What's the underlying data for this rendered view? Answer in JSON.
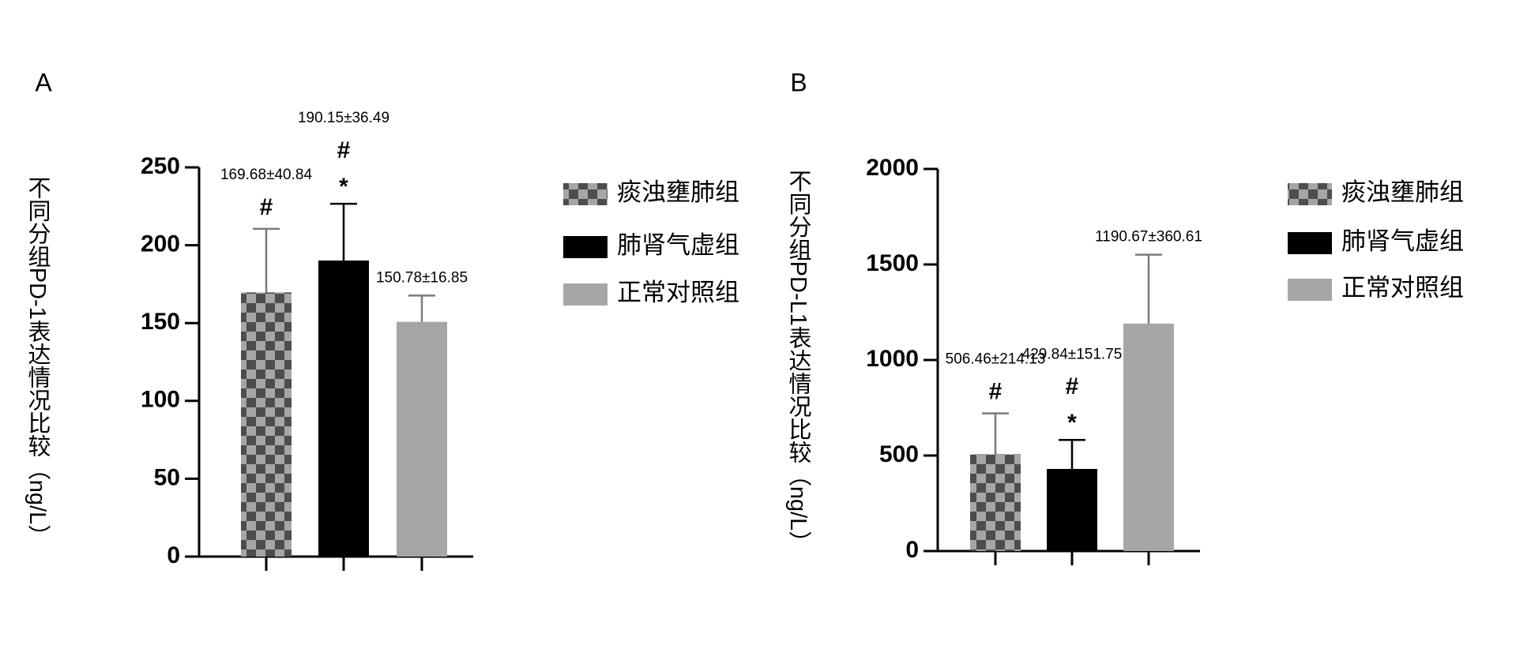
{
  "chart_data": [
    {
      "type": "bar",
      "panel": "A",
      "ylabel": "不同分组PD-1表达情况比较（ng/L）",
      "ylim": [
        0,
        250
      ],
      "yticks": [
        0,
        50,
        100,
        150,
        200,
        250
      ],
      "series": [
        {
          "name": "痰浊壅肺组",
          "color": "#4d4d4d",
          "pattern": "checker",
          "pattern_color": "#a6a6a6",
          "values": [
            169.68
          ],
          "errors": [
            40.84
          ],
          "value_labels": [
            "169.68±40.84"
          ],
          "marks": [
            "#"
          ]
        },
        {
          "name": "肺肾气虚组",
          "color": "#000000",
          "values": [
            190.15
          ],
          "errors": [
            36.49
          ],
          "value_labels": [
            "190.15±36.49"
          ],
          "marks": [
            "#",
            "*"
          ]
        },
        {
          "name": "正常对照组",
          "color": "#a6a6a8",
          "values": [
            150.78
          ],
          "errors": [
            16.85
          ],
          "value_labels": [
            "150.78±16.85"
          ]
        }
      ]
    },
    {
      "type": "bar",
      "panel": "B",
      "ylabel": "不同分组PD-L1表达情况比较（ng/L）",
      "ylim": [
        0,
        2000
      ],
      "yticks": [
        0,
        500,
        1000,
        1500,
        2000
      ],
      "series": [
        {
          "name": "痰浊壅肺组",
          "color": "#4d4d4d",
          "pattern": "checker",
          "pattern_color": "#a6a6a6",
          "values": [
            506.46
          ],
          "errors": [
            214.13
          ],
          "value_labels": [
            "506.46±214.13"
          ],
          "marks": [
            "#"
          ]
        },
        {
          "name": "肺肾气虚组",
          "color": "#000000",
          "values": [
            429.84
          ],
          "errors": [
            151.75
          ],
          "value_labels": [
            "429.84±151.75"
          ],
          "marks": [
            "#",
            "*"
          ]
        },
        {
          "name": "正常对照组",
          "color": "#a6a6a8",
          "values": [
            1190.67
          ],
          "errors": [
            360.61
          ],
          "value_labels": [
            "1190.67±360.61"
          ]
        }
      ]
    }
  ]
}
